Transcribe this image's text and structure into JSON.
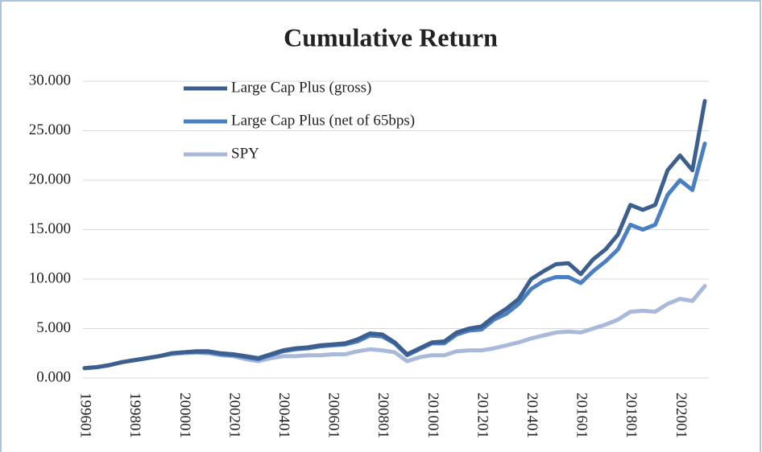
{
  "chart_data": {
    "type": "line",
    "title": "Cumulative Return",
    "categories": [
      "199601",
      null,
      null,
      null,
      "199801",
      null,
      null,
      null,
      "200001",
      null,
      null,
      null,
      "200201",
      null,
      null,
      null,
      "200401",
      null,
      null,
      null,
      "200601",
      null,
      null,
      null,
      "200801",
      null,
      null,
      null,
      "201001",
      null,
      null,
      null,
      "201201",
      null,
      null,
      null,
      "201401",
      null,
      null,
      null,
      "201601",
      null,
      null,
      null,
      "201801",
      null,
      null,
      null,
      "202001",
      null,
      null
    ],
    "series": [
      {
        "name": "Large Cap Plus (gross)",
        "color": "#3d5f8f",
        "values": [
          1.0,
          1.1,
          1.3,
          1.6,
          1.8,
          2.0,
          2.2,
          2.5,
          2.6,
          2.7,
          2.7,
          2.5,
          2.4,
          2.2,
          2.0,
          2.4,
          2.8,
          3.0,
          3.1,
          3.3,
          3.4,
          3.5,
          3.9,
          4.5,
          4.4,
          3.6,
          2.4,
          3.0,
          3.6,
          3.7,
          4.6,
          5.0,
          5.2,
          6.2,
          7.0,
          8.0,
          10.0,
          10.8,
          11.5,
          11.6,
          10.5,
          12.0,
          13.0,
          14.5,
          17.5,
          17.0,
          17.5,
          21.0,
          22.5,
          21.0,
          28.0
        ]
      },
      {
        "name": "Large Cap Plus (net of 65bps)",
        "color": "#4a7fc1",
        "values": [
          1.0,
          1.1,
          1.3,
          1.6,
          1.8,
          2.0,
          2.2,
          2.5,
          2.6,
          2.6,
          2.6,
          2.4,
          2.3,
          2.1,
          1.9,
          2.3,
          2.7,
          2.9,
          3.0,
          3.2,
          3.3,
          3.4,
          3.7,
          4.3,
          4.2,
          3.5,
          2.3,
          2.9,
          3.5,
          3.5,
          4.4,
          4.8,
          4.9,
          5.9,
          6.5,
          7.5,
          9.0,
          9.8,
          10.2,
          10.2,
          9.6,
          10.8,
          11.8,
          13.0,
          15.5,
          15.0,
          15.5,
          18.5,
          20.0,
          19.0,
          23.7
        ]
      },
      {
        "name": "SPY",
        "color": "#a9b9da",
        "values": [
          1.0,
          1.1,
          1.3,
          1.6,
          1.8,
          2.0,
          2.2,
          2.4,
          2.5,
          2.6,
          2.5,
          2.3,
          2.2,
          1.9,
          1.7,
          2.0,
          2.2,
          2.2,
          2.3,
          2.3,
          2.4,
          2.4,
          2.7,
          2.9,
          2.8,
          2.6,
          1.7,
          2.1,
          2.3,
          2.3,
          2.7,
          2.8,
          2.8,
          3.0,
          3.3,
          3.6,
          4.0,
          4.3,
          4.6,
          4.7,
          4.6,
          5.0,
          5.4,
          5.9,
          6.7,
          6.8,
          6.7,
          7.5,
          8.0,
          7.8,
          9.3
        ]
      }
    ],
    "ylim": [
      0,
      30
    ],
    "yticks": [
      {
        "value": 0,
        "label": "0.000"
      },
      {
        "value": 5,
        "label": "5.000"
      },
      {
        "value": 10,
        "label": "10.000"
      },
      {
        "value": 15,
        "label": "15.000"
      },
      {
        "value": 20,
        "label": "20.000"
      },
      {
        "value": 25,
        "label": "25.000"
      },
      {
        "value": 30,
        "label": "30.000"
      }
    ],
    "grid": true,
    "legend": "top-left"
  }
}
